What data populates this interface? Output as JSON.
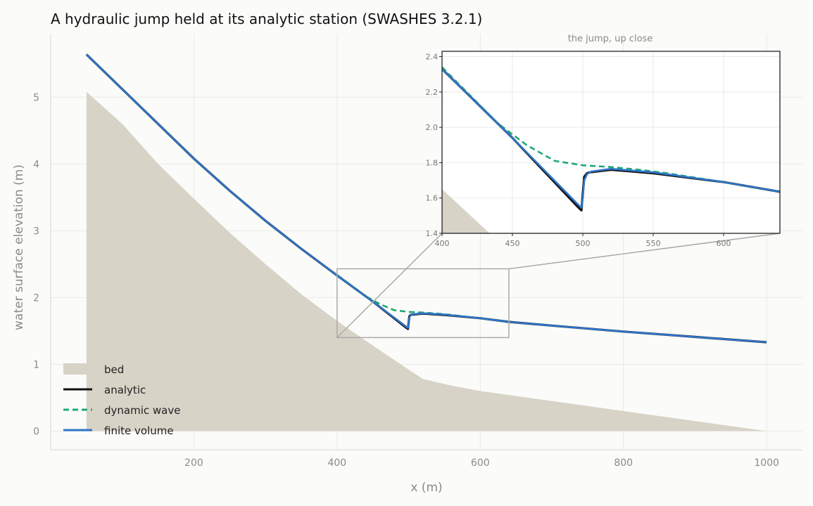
{
  "colors": {
    "bed": "#d8d3c7",
    "analytic": "#111111",
    "dynamic": "#1fa878",
    "finite": "#2f75c9",
    "background": "#fbfbf9",
    "zoom_box": "#aaaaaa"
  },
  "chart_data": {
    "type": "line",
    "title": "A hydraulic jump held at its analytic station (SWASHES 3.2.1)",
    "xlabel": "x (m)",
    "ylabel": "water surface elevation (m)",
    "xlim": [
      0,
      1050
    ],
    "ylim": [
      -0.28,
      5.95
    ],
    "xticks": [
      200,
      400,
      600,
      800,
      1000
    ],
    "yticks": [
      0,
      1,
      2,
      3,
      4,
      5
    ],
    "grid": true,
    "legend_position": "lower-left",
    "legend": [
      "bed",
      "analytic",
      "dynamic wave",
      "finite volume"
    ],
    "bed": {
      "x": [
        50,
        100,
        150,
        200,
        250,
        300,
        350,
        400,
        450,
        500,
        520,
        560,
        600,
        700,
        800,
        900,
        1000
      ],
      "y": [
        5.08,
        4.6,
        4.0,
        3.48,
        2.97,
        2.5,
        2.05,
        1.65,
        1.28,
        0.92,
        0.78,
        0.68,
        0.6,
        0.45,
        0.3,
        0.15,
        0.0
      ]
    },
    "series": [
      {
        "name": "analytic",
        "x": [
          50,
          100,
          150,
          200,
          250,
          300,
          350,
          400,
          450,
          497,
          499,
          501,
          503,
          505,
          520,
          550,
          600,
          640,
          700,
          800,
          900,
          1000
        ],
        "y": [
          5.64,
          5.12,
          4.6,
          4.08,
          3.6,
          3.15,
          2.73,
          2.33,
          1.94,
          1.545,
          1.53,
          1.72,
          1.74,
          1.745,
          1.76,
          1.74,
          1.69,
          1.635,
          1.58,
          1.49,
          1.41,
          1.33
        ]
      },
      {
        "name": "dynamic wave",
        "x": [
          400,
          420,
          440,
          460,
          480,
          500,
          520,
          540,
          560,
          600,
          640
        ],
        "y": [
          2.34,
          2.18,
          2.02,
          1.9,
          1.81,
          1.785,
          1.775,
          1.76,
          1.74,
          1.69,
          1.635
        ]
      },
      {
        "name": "finite volume",
        "x": [
          50,
          100,
          150,
          200,
          250,
          300,
          350,
          400,
          450,
          497,
          499,
          500,
          501,
          503,
          506,
          520,
          550,
          600,
          640,
          700,
          800,
          900,
          1000
        ],
        "y": [
          5.64,
          5.12,
          4.6,
          4.08,
          3.6,
          3.15,
          2.73,
          2.33,
          1.94,
          1.56,
          1.545,
          1.6,
          1.7,
          1.735,
          1.75,
          1.765,
          1.745,
          1.69,
          1.635,
          1.58,
          1.49,
          1.41,
          1.33
        ]
      }
    ],
    "inset": {
      "title": "the jump, up close",
      "xlim": [
        400,
        640
      ],
      "ylim": [
        1.4,
        2.43
      ],
      "xticks": [
        400,
        450,
        500,
        550,
        600
      ],
      "yticks": [
        1.4,
        1.6,
        1.8,
        2.0,
        2.2,
        2.4
      ]
    }
  }
}
